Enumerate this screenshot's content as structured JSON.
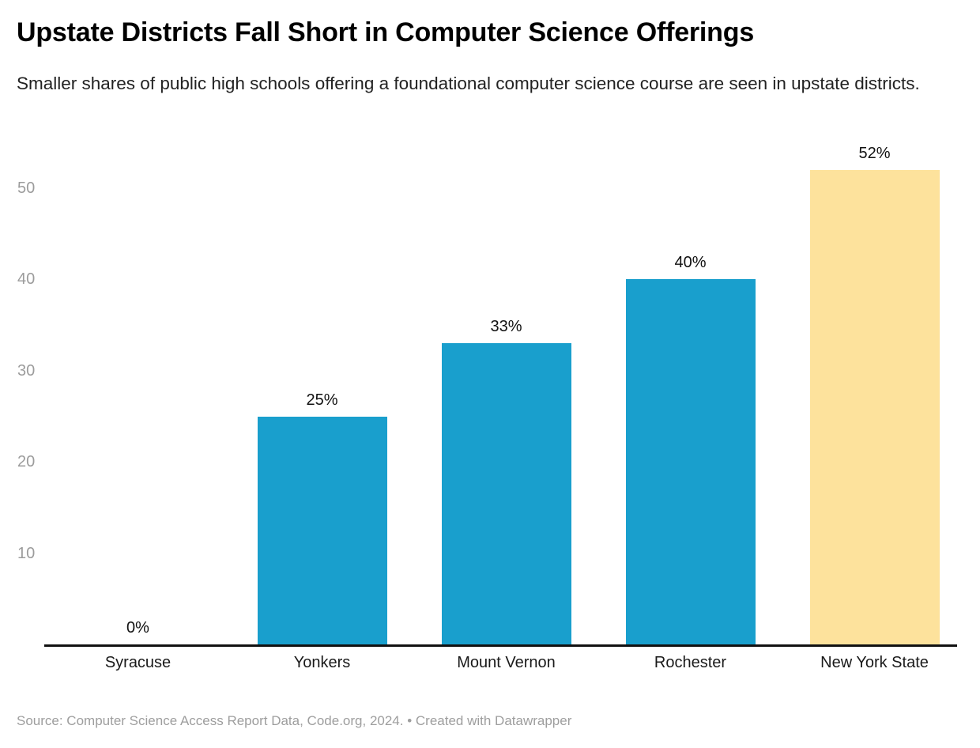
{
  "chart_data": {
    "type": "bar",
    "title": "Upstate Districts Fall Short in Computer Science Offerings",
    "subtitle": "Smaller shares of public high schools offering a foundational computer science course are seen in upstate districts.",
    "categories": [
      "Syracuse",
      "Yonkers",
      "Mount Vernon",
      "Rochester",
      "New York State"
    ],
    "values": [
      0,
      25,
      33,
      40,
      52
    ],
    "data_labels": [
      "0%",
      "25%",
      "33%",
      "40%",
      "52%"
    ],
    "bar_colors": [
      "#199fcd",
      "#199fcd",
      "#199fcd",
      "#199fcd",
      "#fde29c"
    ],
    "highlighted_category": "New York State",
    "xlabel": "",
    "ylabel": "",
    "ylim": [
      0,
      52
    ],
    "yticks": [
      10,
      20,
      30,
      40,
      50
    ],
    "grid": false,
    "legend_position": "none",
    "axis_color": "#111111",
    "tick_label_color": "#9c9c9c",
    "source": "Source: Computer Science Access Report Data, Code.org, 2024. • Created with Datawrapper"
  }
}
